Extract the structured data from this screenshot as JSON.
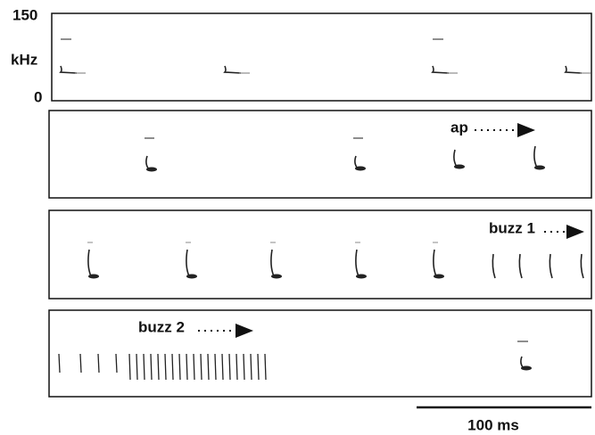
{
  "axis": {
    "max": 150,
    "unit": "kHz",
    "min": 0
  },
  "annotations": {
    "approach": "ap",
    "buzz1": "buzz 1",
    "buzz2": "buzz 2"
  },
  "scale_bar": "100 ms"
}
